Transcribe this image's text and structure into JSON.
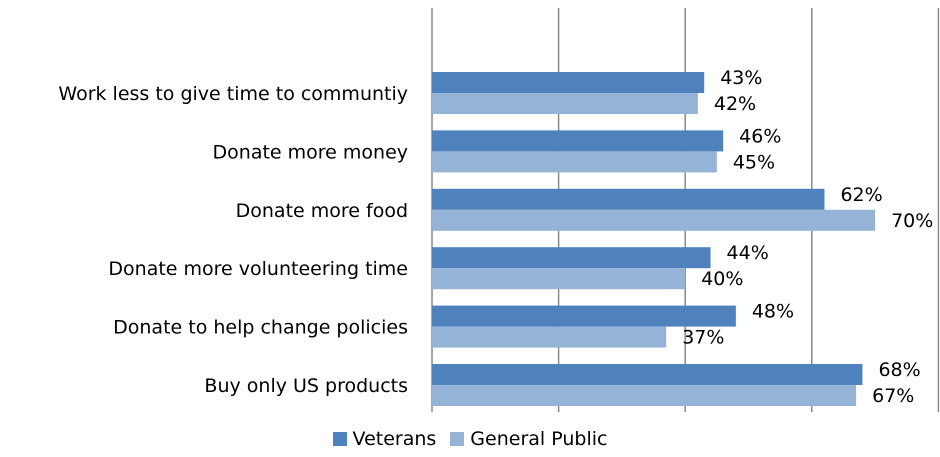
{
  "chart_data": {
    "type": "bar",
    "orientation": "horizontal",
    "categories": [
      "Work less to give time to communtiy",
      "Donate more money",
      "Donate more food",
      "Donate more volunteering time",
      "Donate to help change policies",
      "Buy only US products"
    ],
    "series": [
      {
        "name": "Veterans",
        "values": [
          43,
          46,
          62,
          44,
          48,
          68
        ],
        "labels": [
          "43%",
          "46%",
          "62%",
          "44%",
          "48%",
          "68%"
        ],
        "color": "#4f81bd"
      },
      {
        "name": "General Public",
        "values": [
          42,
          45,
          70,
          40,
          37,
          67
        ],
        "labels": [
          "42%",
          "45%",
          "70%",
          "40%",
          "37%",
          "67%"
        ],
        "color": "#95b3d7"
      }
    ],
    "xlim": [
      0,
      80
    ],
    "grid": "vertical",
    "legend": "bottom"
  }
}
